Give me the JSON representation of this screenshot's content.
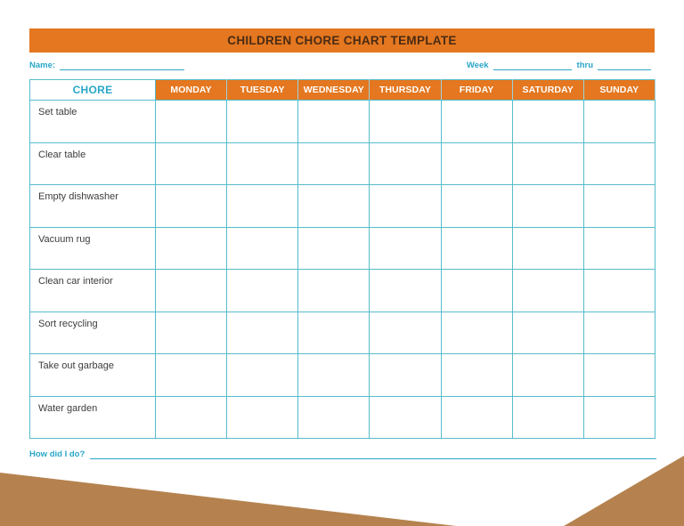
{
  "title": "CHILDREN CHORE CHART TEMPLATE",
  "fields": {
    "name_label": "Name:",
    "name_value": "",
    "week_label": "Week",
    "week_value": "",
    "thru_label": "thru",
    "thru_value": "",
    "footer_label": "How did I do?",
    "footer_value": ""
  },
  "table": {
    "chore_header": "CHORE",
    "days": [
      "MONDAY",
      "TUESDAY",
      "WEDNESDAY",
      "THURSDAY",
      "FRIDAY",
      "SATURDAY",
      "SUNDAY"
    ],
    "chores": [
      "Set table",
      "Clear table",
      "Empty dishwasher",
      "Vacuum rug",
      "Clean car interior",
      "Sort recycling",
      "Take out garbage",
      "Water garden"
    ]
  },
  "colors": {
    "accent_orange": "#E4771F",
    "teal_text": "#29A7C8",
    "teal_border": "#56BCCB",
    "title_text": "#4A2B14",
    "footer_brown": "#B5824F",
    "chore_text": "#3C3C3C"
  }
}
